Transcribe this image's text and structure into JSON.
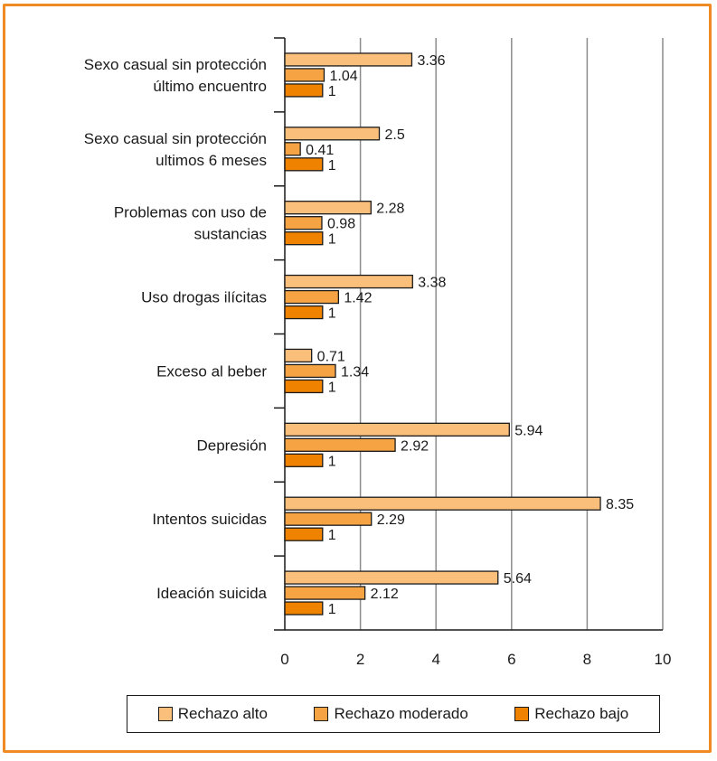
{
  "chart_data": {
    "type": "bar",
    "orientation": "horizontal",
    "categories": [
      [
        "Sexo casual sin protección",
        "último encuentro"
      ],
      [
        "Sexo casual sin protección",
        "ultimos 6 meses"
      ],
      [
        "Problemas con uso de",
        "sustancias"
      ],
      [
        "Uso drogas ilícitas"
      ],
      [
        "Exceso al beber"
      ],
      [
        "Depresión"
      ],
      [
        "Intentos suicidas"
      ],
      [
        "Ideación suicida"
      ]
    ],
    "series": [
      {
        "name": "Rechazo alto",
        "color": "#fbbf7c",
        "values": [
          3.36,
          2.5,
          2.28,
          3.38,
          0.71,
          5.94,
          8.35,
          5.64
        ]
      },
      {
        "name": "Rechazo moderado",
        "color": "#f6a443",
        "values": [
          1.04,
          0.41,
          0.98,
          1.42,
          1.34,
          2.92,
          2.29,
          2.12
        ]
      },
      {
        "name": "Rechazo bajo",
        "color": "#ef8300",
        "values": [
          1,
          1,
          1,
          1,
          1,
          1,
          1,
          1
        ]
      }
    ],
    "value_labels": [
      [
        "3.36",
        "2.5",
        "2.28",
        "3.38",
        "0.71",
        "5.94",
        "8.35",
        "5.64"
      ],
      [
        "1.04",
        "0.41",
        "0.98",
        "1.42",
        "1.34",
        "2.92",
        "2.29",
        "2.12"
      ],
      [
        "1",
        "1",
        "1",
        "1",
        "1",
        "1",
        "1",
        "1"
      ]
    ],
    "x_ticks": [
      "0",
      "2",
      "4",
      "6",
      "8",
      "10"
    ],
    "xlim": [
      0,
      10
    ],
    "grid": true,
    "legend_position": "bottom",
    "title": "",
    "xlabel": "",
    "ylabel": ""
  },
  "frame_color": "#ef8b22"
}
